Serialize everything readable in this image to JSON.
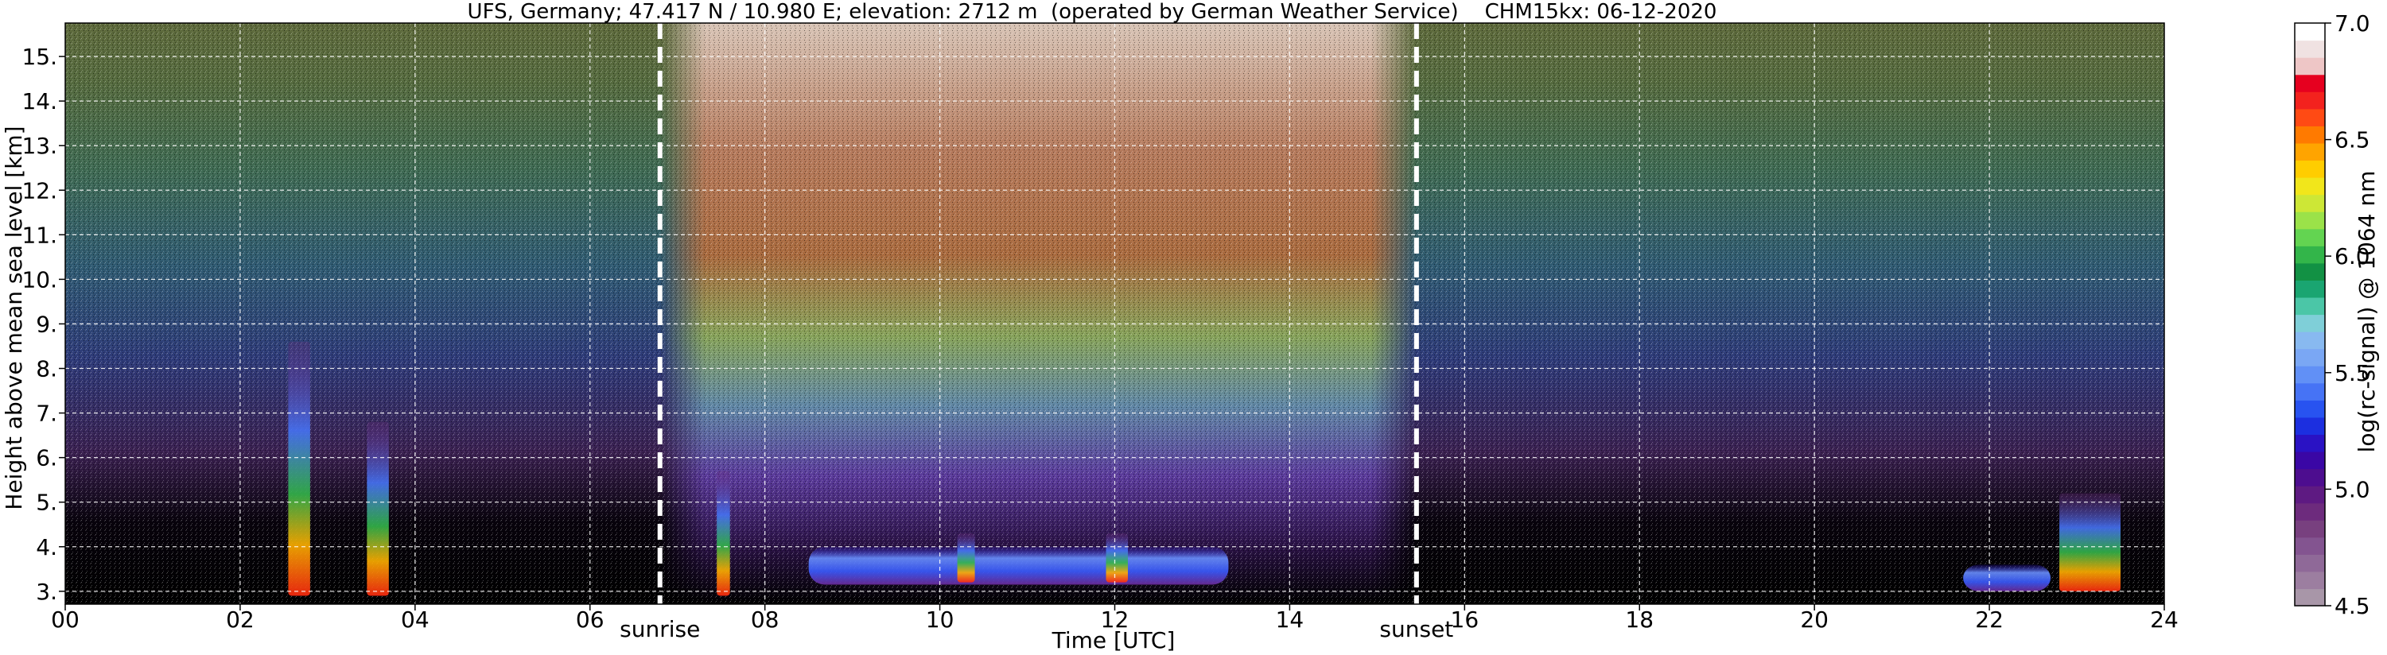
{
  "chart_data": {
    "type": "heatmap",
    "title": "UFS, Germany; 47.417 N / 10.980 E; elevation: 2712 m  (operated by German Weather Service)    CHM15kx: 06-12-2020",
    "xlabel": "Time [UTC]",
    "ylabel": "Height above mean sea level [km]",
    "xlim": [
      0,
      24
    ],
    "ylim": [
      2.712,
      15.75
    ],
    "grid": true,
    "x_ticks": [
      "00",
      "02",
      "04",
      "06",
      "08",
      "10",
      "12",
      "14",
      "16",
      "18",
      "20",
      "22",
      "24"
    ],
    "y_ticks": [
      "3.",
      "4.",
      "5.",
      "6.",
      "7.",
      "8.",
      "9.",
      "10.",
      "11.",
      "12.",
      "13.",
      "14.",
      "15."
    ],
    "events": [
      {
        "label": "sunrise",
        "time": 6.8
      },
      {
        "label": "sunset",
        "time": 15.45
      }
    ],
    "colorbar": {
      "label": "log(rc-signal) @ 1064 nm",
      "range": [
        4.5,
        7.0
      ],
      "ticks": [
        "4.5",
        "5.0",
        "5.5",
        "6.0",
        "6.5",
        "7.0"
      ],
      "colors": [
        "#a896a8",
        "#9c7ea0",
        "#8f6998",
        "#835490",
        "#78407f",
        "#6d2b7d",
        "#5e1a82",
        "#4d0d8f",
        "#3a07a5",
        "#2a12c4",
        "#1c2fe0",
        "#2853f0",
        "#4673f5",
        "#6190f6",
        "#7aa7f4",
        "#88b9f0",
        "#7fcfd8",
        "#4bc6a7",
        "#1aa571",
        "#129144",
        "#33b54a",
        "#63d451",
        "#9be249",
        "#cde736",
        "#f1e61b",
        "#ffcd00",
        "#ffa400",
        "#ff7a00",
        "#ff4a14",
        "#f3221e",
        "#e6001f",
        "#eec6c6",
        "#f0e2e2",
        "#ffffff"
      ]
    },
    "features": [
      {
        "kind": "cloud",
        "t_start": 2.55,
        "t_end": 2.8,
        "h_base": 2.9,
        "h_top": 8.6
      },
      {
        "kind": "cloud",
        "t_start": 3.45,
        "t_end": 3.7,
        "h_base": 2.9,
        "h_top": 6.8
      },
      {
        "kind": "cloud",
        "t_start": 7.45,
        "t_end": 7.6,
        "h_base": 2.9,
        "h_top": 5.7
      },
      {
        "kind": "layer",
        "t_start": 8.5,
        "t_end": 13.3,
        "h_base": 3.15,
        "h_top": 4.0
      },
      {
        "kind": "cloud",
        "t_start": 10.2,
        "t_end": 10.4,
        "h_base": 3.2,
        "h_top": 4.3
      },
      {
        "kind": "cloud",
        "t_start": 11.9,
        "t_end": 12.15,
        "h_base": 3.2,
        "h_top": 4.3
      },
      {
        "kind": "layer",
        "t_start": 21.7,
        "t_end": 22.7,
        "h_base": 3.0,
        "h_top": 3.6
      },
      {
        "kind": "cloud",
        "t_start": 22.8,
        "t_end": 23.5,
        "h_base": 3.0,
        "h_top": 5.2
      }
    ]
  }
}
